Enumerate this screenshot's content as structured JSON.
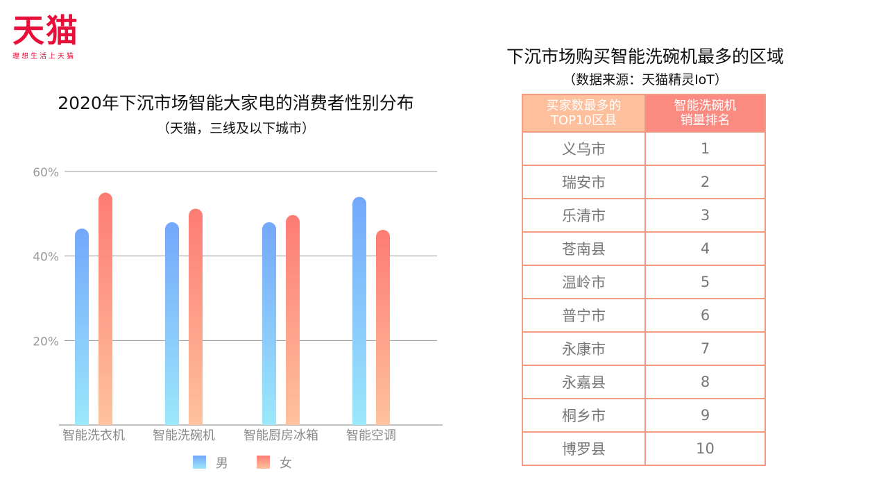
{
  "logo": {
    "text": "天猫",
    "slogan": "理想生活上天猫"
  },
  "chart_data": {
    "type": "bar",
    "title": "2020年下沉市场智能大家电的消费者性别分布",
    "subtitle": "（天猫，三线及以下城市）",
    "categories": [
      "智能洗衣机",
      "智能洗碗机",
      "智能厨房冰箱",
      "智能空调"
    ],
    "series": [
      {
        "name": "男",
        "values": [
          46.5,
          48,
          48,
          54
        ],
        "color_top": "#74a7fb",
        "color_bottom": "#9be8fb"
      },
      {
        "name": "女",
        "values": [
          55,
          51.2,
          49.7,
          46.2
        ],
        "color_top": "#fd7b73",
        "color_bottom": "#fec29e"
      }
    ],
    "ylim": [
      0,
      60
    ],
    "yticks": [
      20,
      40,
      60
    ],
    "ytick_labels": [
      "20%",
      "40%",
      "60%"
    ],
    "grid": true,
    "legend": "bottom"
  },
  "table": {
    "title": "下沉市场购买智能洗碗机最多的区域",
    "subtitle": "（数据来源：天猫精灵IoT）",
    "headers": [
      {
        "line1": "买家数最多的",
        "line2": "TOP10区县"
      },
      {
        "line1": "智能洗碗机",
        "line2": "销量排名"
      }
    ],
    "rows": [
      {
        "region": "义乌市",
        "rank": "1"
      },
      {
        "region": "瑞安市",
        "rank": "2"
      },
      {
        "region": "乐清市",
        "rank": "3"
      },
      {
        "region": "苍南县",
        "rank": "4"
      },
      {
        "region": "温岭市",
        "rank": "5"
      },
      {
        "region": "普宁市",
        "rank": "6"
      },
      {
        "region": "永康市",
        "rank": "7"
      },
      {
        "region": "永嘉县",
        "rank": "8"
      },
      {
        "region": "桐乡市",
        "rank": "9"
      },
      {
        "region": "博罗县",
        "rank": "10"
      }
    ]
  }
}
